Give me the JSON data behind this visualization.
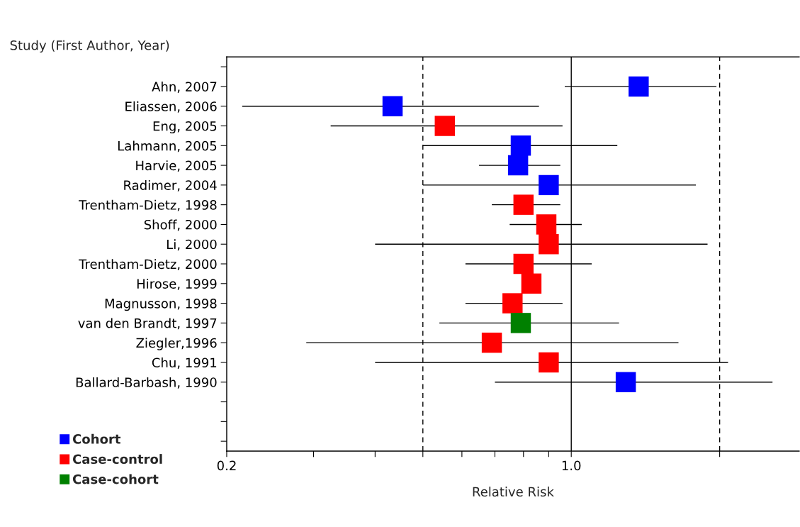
{
  "chart_data": {
    "type": "scatter",
    "orientation": "horizontal",
    "marker": "square",
    "legend": "bottom left",
    "grid": false,
    "log": "x",
    "ylabel": "Study (First Author, Year)",
    "xlabel": "Relative Risk",
    "categories": [
      null,
      "Ahn, 2007",
      "Eliassen, 2006",
      "Eng, 2005",
      "Lahmann, 2005",
      "Harvie, 2005",
      "Radimer, 2004",
      "Trentham-Dietz, 1998",
      "Shoff, 2000",
      "Li, 2000",
      "Trentham-Dietz, 2000",
      "Hirose, 1999",
      "Magnusson, 1998",
      "van den Brandt, 1997",
      "Ziegler,1996",
      "Chu, 1991",
      "Ballard-Barbash, 1990",
      null,
      null,
      null
    ],
    "xlim": [
      0.2,
      2.9
    ],
    "xticks": [
      {
        "value": 0.2,
        "label": "0.2"
      },
      {
        "value": 0.3,
        "label": null
      },
      {
        "value": 0.4,
        "label": null
      },
      {
        "value": 0.5,
        "label": null
      },
      {
        "value": 0.6,
        "label": null
      },
      {
        "value": 0.7,
        "label": null
      },
      {
        "value": 0.8,
        "label": null
      },
      {
        "value": 0.9,
        "label": null
      },
      {
        "value": 1.0,
        "label": "1.0"
      },
      {
        "value": 2.0,
        "label": null
      }
    ],
    "ref_lines": [
      {
        "axis": "x",
        "value": 0.5,
        "line_style": "dashed",
        "color": "#000000"
      },
      {
        "axis": "x",
        "value": 1.0,
        "line_style": "solid",
        "color": "#000000"
      },
      {
        "axis": "x",
        "value": 2.0,
        "line_style": "dashed",
        "color": "#000000"
      }
    ],
    "series": [
      {
        "name": "Cohort",
        "color": "#0000ff",
        "values": [
          null,
          1.37,
          0.434,
          null,
          0.79,
          0.78,
          0.9,
          null,
          null,
          null,
          null,
          null,
          null,
          null,
          null,
          null,
          1.29,
          null,
          null,
          null
        ],
        "errors": [
          null,
          [
            0.97,
            1.97
          ],
          [
            0.215,
            0.86
          ],
          null,
          [
            0.5,
            1.24
          ],
          [
            0.65,
            0.95
          ],
          [
            0.5,
            1.79
          ],
          null,
          null,
          null,
          null,
          null,
          null,
          null,
          null,
          null,
          [
            0.7,
            2.56
          ],
          null,
          null,
          null
        ]
      },
      {
        "name": "Case-control",
        "color": "#ff0000",
        "values": [
          null,
          null,
          null,
          0.554,
          null,
          null,
          null,
          0.8,
          0.89,
          0.9,
          0.8,
          0.83,
          0.76,
          null,
          0.69,
          0.9,
          null,
          null,
          null,
          null
        ],
        "errors": [
          null,
          null,
          null,
          [
            0.325,
            0.96
          ],
          null,
          null,
          null,
          [
            0.69,
            0.95
          ],
          [
            0.75,
            1.05
          ],
          [
            0.4,
            1.89
          ],
          [
            0.61,
            1.1
          ],
          null,
          [
            0.61,
            0.96
          ],
          null,
          [
            0.29,
            1.65
          ],
          [
            0.4,
            2.08
          ],
          null,
          null,
          null,
          null
        ]
      },
      {
        "name": "Case-cohort",
        "color": "#008000",
        "values": [
          null,
          null,
          null,
          null,
          null,
          null,
          null,
          null,
          null,
          null,
          null,
          null,
          null,
          0.79,
          null,
          null,
          null,
          null,
          null,
          null
        ],
        "errors": [
          null,
          null,
          null,
          null,
          null,
          null,
          null,
          null,
          null,
          null,
          null,
          null,
          null,
          [
            0.54,
            1.25
          ],
          null,
          null,
          null,
          null,
          null,
          null
        ]
      }
    ]
  }
}
